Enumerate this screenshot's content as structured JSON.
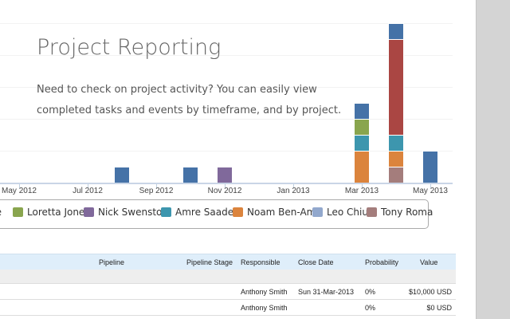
{
  "header": {
    "title": "Project Reporting",
    "description": "Need to check on project activity? You can easily view completed tasks and events by timeframe, and by project."
  },
  "chart_data": {
    "type": "bar",
    "stacked": true,
    "x_ticks": [
      "May 2012",
      "Jul 2012",
      "Sep 2012",
      "Nov 2012",
      "Jan 2013",
      "Mar 2013",
      "May 2013"
    ],
    "ylim": [
      0,
      10
    ],
    "grid": true,
    "legend_placement": "bottom",
    "categories": [
      "Aug 2012",
      "Oct 2012",
      "Nov 2012",
      "Mar 2013",
      "Apr 2013",
      "May 2013"
    ],
    "series": [
      {
        "name": "",
        "color": "#a47d7c",
        "legend": "Tony Roma",
        "values": [
          0,
          0,
          0,
          0,
          1,
          0
        ]
      },
      {
        "name": "",
        "color": "#db843d",
        "legend": "Noam Ben-Ami",
        "values": [
          0,
          0,
          0,
          2,
          1,
          0
        ]
      },
      {
        "name": "",
        "color": "#3d96ae",
        "legend": "Amre Saadeh",
        "values": [
          0,
          0,
          0,
          1,
          1,
          0
        ]
      },
      {
        "name": "",
        "color": "#89a54e",
        "legend": "Loretta Jones",
        "values": [
          0,
          0,
          0,
          1,
          0,
          0
        ]
      },
      {
        "name": "",
        "color": "#80699b",
        "legend": "Nick Swenston",
        "values": [
          0,
          0,
          1,
          0,
          0,
          0
        ]
      },
      {
        "name": "",
        "color": "#aa4643",
        "legend": "",
        "values": [
          0,
          0,
          0,
          0,
          6,
          0
        ]
      },
      {
        "name": "",
        "color": "#4572a7",
        "legend": "ne",
        "values": [
          1,
          1,
          0,
          1,
          1,
          2
        ]
      }
    ]
  },
  "legend": [
    {
      "label": "ne",
      "color": "#4572a7"
    },
    {
      "label": "Loretta Jones",
      "color": "#89a54e"
    },
    {
      "label": "Nick Swenston",
      "color": "#80699b"
    },
    {
      "label": "Amre Saadeh",
      "color": "#3d96ae"
    },
    {
      "label": "Noam Ben-Ami",
      "color": "#db843d"
    },
    {
      "label": "Leo Chiu",
      "color": "#92a8cd"
    },
    {
      "label": "Tony Roma",
      "color": "#a47d7c"
    }
  ],
  "table": {
    "headers": {
      "pipeline": "Pipeline",
      "stage": "Pipeline Stage",
      "responsible": "Responsible",
      "close_date": "Close Date",
      "probability": "Probability",
      "value": "Value"
    },
    "rows": [
      {
        "responsible": "Anthony Smith",
        "close_date": "Sun 31-Mar-2013",
        "probability": "0%",
        "value": "$10,000 USD"
      },
      {
        "responsible": "Anthony Smith",
        "close_date": "",
        "probability": "0%",
        "value": "$0 USD"
      }
    ]
  }
}
